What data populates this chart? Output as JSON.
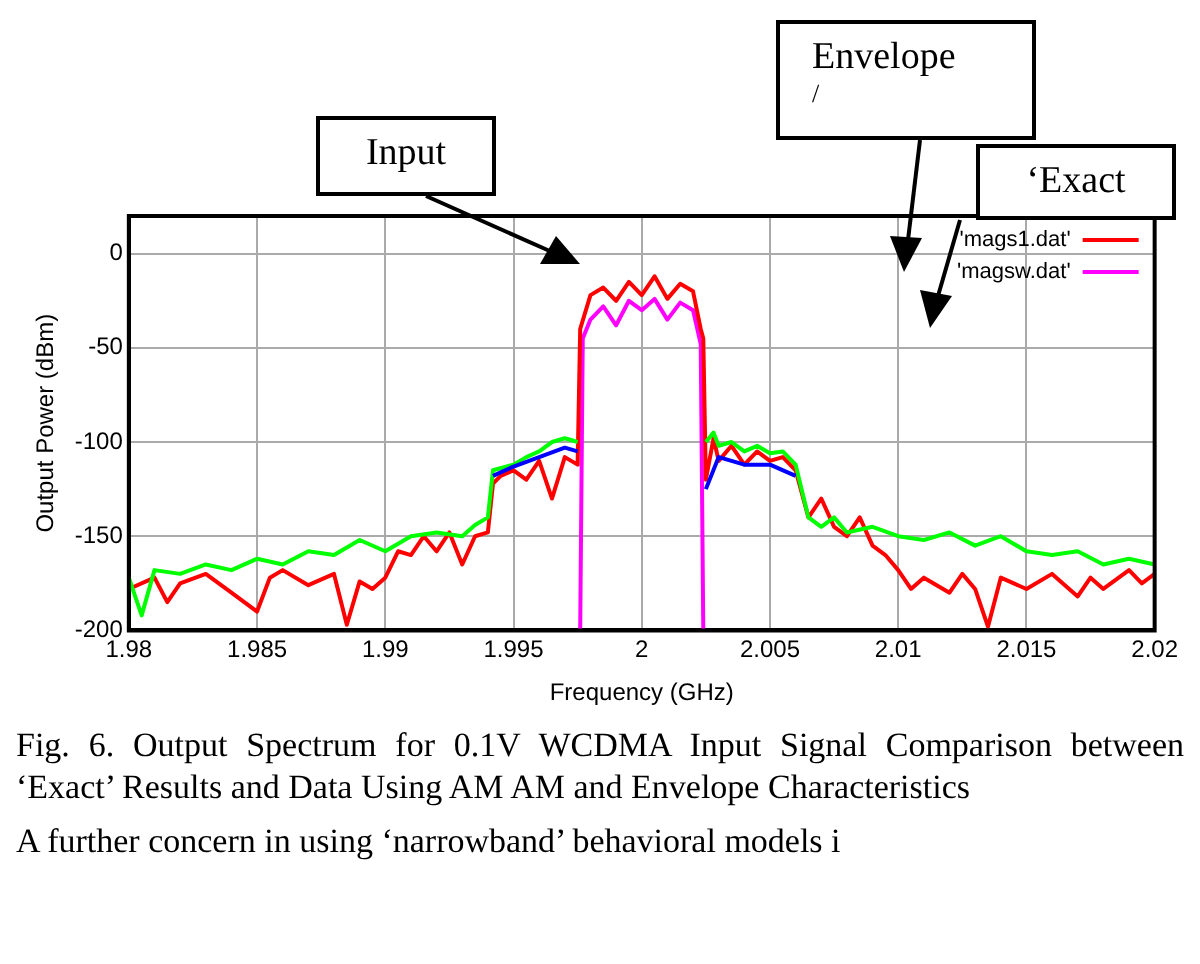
{
  "chart_data": {
    "type": "line",
    "xlabel": "Frequency (GHz)",
    "ylabel": "Output Power (dBm)",
    "xlim": [
      1.98,
      2.02
    ],
    "xticks": [
      1.98,
      1.985,
      1.99,
      1.995,
      2,
      2.005,
      2.01,
      2.015,
      2.02
    ],
    "ylim": [
      -200,
      20
    ],
    "yticks": [
      -200,
      -150,
      -100,
      -50,
      0
    ],
    "grid": true,
    "legend": "top right",
    "marker": "none",
    "line_style": "solid",
    "annotations": [
      "Input",
      "Envelope",
      "/",
      "‘Exact",
      "Fig. 6. Output Spectrum for 0.1V WCDMA Input Signal Comparison between ‘Exact’ Results and Data Using AM AM and Envelope Characteristics",
      "A further concern in using ‘narrowband’ behavioral models i"
    ],
    "series": [
      {
        "color": "#0000ff",
        "x": [
          1.9942,
          1.995,
          1.996,
          1.997,
          1.9975,
          2,
          2.0025,
          2.003,
          2.004,
          2.005,
          2.006
        ],
        "values": [
          -118,
          -113,
          -108,
          -103,
          -105,
          null,
          -125,
          -108,
          -112,
          -112,
          -118
        ]
      },
      {
        "color": "#00ff00",
        "x": [
          1.98,
          1.9805,
          1.981,
          1.982,
          1.983,
          1.984,
          1.985,
          1.986,
          1.987,
          1.988,
          1.989,
          1.99,
          1.991,
          1.992,
          1.993,
          1.9935,
          1.994,
          1.9942,
          1.995,
          1.9955,
          1.996,
          1.9965,
          1.997,
          1.9975,
          2,
          2.0025,
          2.0028,
          2.003,
          2.0035,
          2.004,
          2.0045,
          2.005,
          2.0055,
          2.006,
          2.0065,
          2.007,
          2.0075,
          2.008,
          2.009,
          2.01,
          2.011,
          2.012,
          2.013,
          2.014,
          2.015,
          2.016,
          2.017,
          2.018,
          2.019,
          2.02
        ],
        "values": [
          -172,
          -192,
          -168,
          -170,
          -165,
          -168,
          -162,
          -165,
          -158,
          -160,
          -152,
          -158,
          -150,
          -148,
          -150,
          -144,
          -140,
          -115,
          -112,
          -108,
          -105,
          -100,
          -98,
          -100,
          null,
          -100,
          -95,
          -102,
          -100,
          -105,
          -102,
          -106,
          -105,
          -112,
          -140,
          -145,
          -140,
          -148,
          -145,
          -150,
          -152,
          -148,
          -155,
          -150,
          -158,
          -160,
          -158,
          -165,
          -162,
          -165
        ]
      },
      {
        "name": "'mags1.dat'",
        "color": "#ff0000",
        "x": [
          1.98,
          1.981,
          1.9815,
          1.982,
          1.983,
          1.984,
          1.985,
          1.9855,
          1.986,
          1.987,
          1.988,
          1.9885,
          1.989,
          1.9895,
          1.99,
          1.9905,
          1.991,
          1.9915,
          1.992,
          1.9925,
          1.993,
          1.9935,
          1.994,
          1.9942,
          1.9945,
          1.995,
          1.9955,
          1.996,
          1.9965,
          1.997,
          1.9975,
          1.9976,
          1.998,
          1.9985,
          1.999,
          1.9995,
          2,
          2.0005,
          2.001,
          2.0015,
          2.002,
          2.0023,
          2.0024,
          2.0025,
          2.0028,
          2.003,
          2.0035,
          2.004,
          2.0045,
          2.005,
          2.0055,
          2.006,
          2.0065,
          2.007,
          2.0075,
          2.008,
          2.0085,
          2.009,
          2.0095,
          2.01,
          2.0105,
          2.011,
          2.012,
          2.0125,
          2.013,
          2.0135,
          2.014,
          2.015,
          2.016,
          2.017,
          2.0175,
          2.018,
          2.019,
          2.0195,
          2.02
        ],
        "values": [
          -178,
          -172,
          -185,
          -175,
          -170,
          -180,
          -190,
          -172,
          -168,
          -176,
          -170,
          -197,
          -174,
          -178,
          -172,
          -158,
          -160,
          -150,
          -158,
          -148,
          -165,
          -150,
          -148,
          -122,
          -118,
          -115,
          -120,
          -110,
          -130,
          -108,
          -112,
          -40,
          -22,
          -18,
          -25,
          -15,
          -22,
          -12,
          -24,
          -16,
          -20,
          -40,
          -45,
          -120,
          -98,
          -110,
          -102,
          -112,
          -105,
          -110,
          -108,
          -115,
          -140,
          -130,
          -145,
          -150,
          -140,
          -155,
          -160,
          -168,
          -178,
          -172,
          -180,
          -170,
          -178,
          -198,
          -172,
          -178,
          -170,
          -182,
          -172,
          -178,
          -168,
          -175,
          -170
        ]
      },
      {
        "name": "'magsw.dat'",
        "color": "#ff00ff",
        "x": [
          1.9976,
          1.9977,
          1.998,
          1.9985,
          1.999,
          1.9995,
          2,
          2.0005,
          2.001,
          2.0015,
          2.002,
          2.0023,
          2.0024
        ],
        "values": [
          -200,
          -45,
          -35,
          -28,
          -38,
          -25,
          -30,
          -24,
          -35,
          -26,
          -30,
          -48,
          -200
        ]
      }
    ]
  }
}
